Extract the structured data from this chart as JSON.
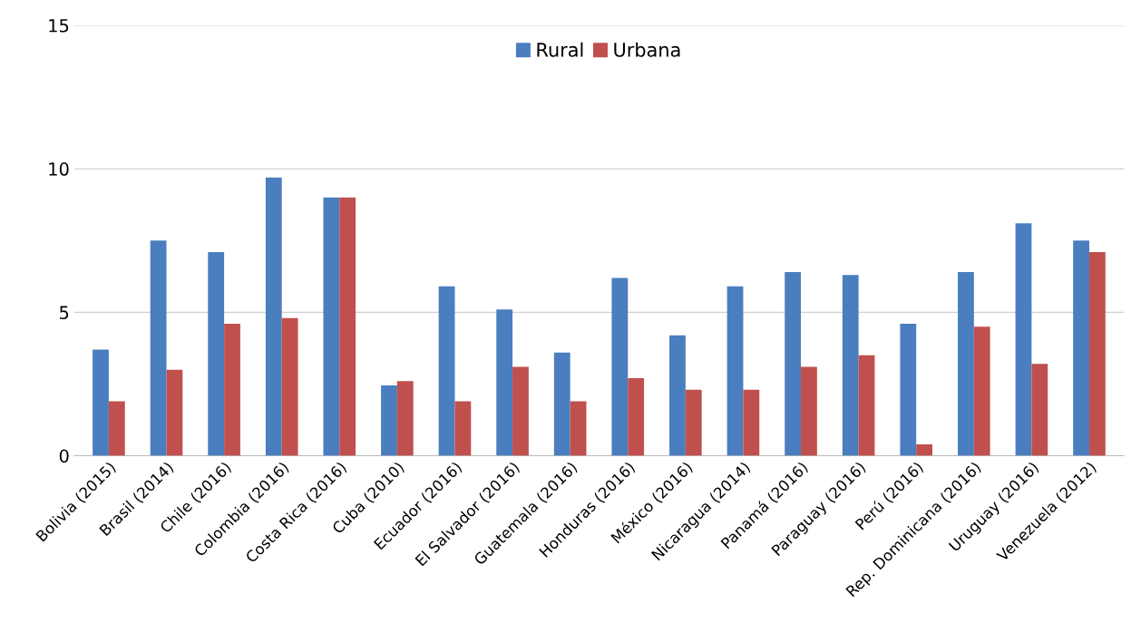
{
  "chart_data": {
    "type": "bar",
    "categories": [
      "Bolivia (2015)",
      "Brasil (2014)",
      "Chile (2016)",
      "Colombia (2016)",
      "Costa Rica (2016)",
      "Cuba (2010)",
      "Ecuador (2016)",
      "El Salvador (2016)",
      "Guatemala (2016)",
      "Honduras (2016)",
      "México (2016)",
      "Nicaragua (2014)",
      "Panamá (2016)",
      "Paraguay (2016)",
      "Perú (2016)",
      "Rep. Dominicana (2016)",
      "Uruguay (2016)",
      "Venezuela (2012)"
    ],
    "series": [
      {
        "name": "Rural",
        "color": "#4a7ebf",
        "values": [
          3.7,
          7.5,
          7.1,
          9.7,
          9.0,
          2.45,
          5.9,
          5.1,
          3.6,
          6.2,
          4.2,
          5.9,
          6.4,
          6.3,
          4.6,
          6.4,
          8.1,
          7.5
        ]
      },
      {
        "name": "Urbana",
        "color": "#c0504d",
        "values": [
          1.9,
          3.0,
          4.6,
          4.8,
          9.0,
          2.6,
          1.9,
          3.1,
          1.9,
          2.7,
          2.3,
          2.3,
          3.1,
          3.5,
          0.4,
          4.5,
          3.2,
          7.1
        ]
      }
    ],
    "ylim": [
      0,
      15
    ],
    "yticks": [
      0,
      5,
      10,
      15
    ],
    "grid": "y",
    "legend": "top"
  }
}
